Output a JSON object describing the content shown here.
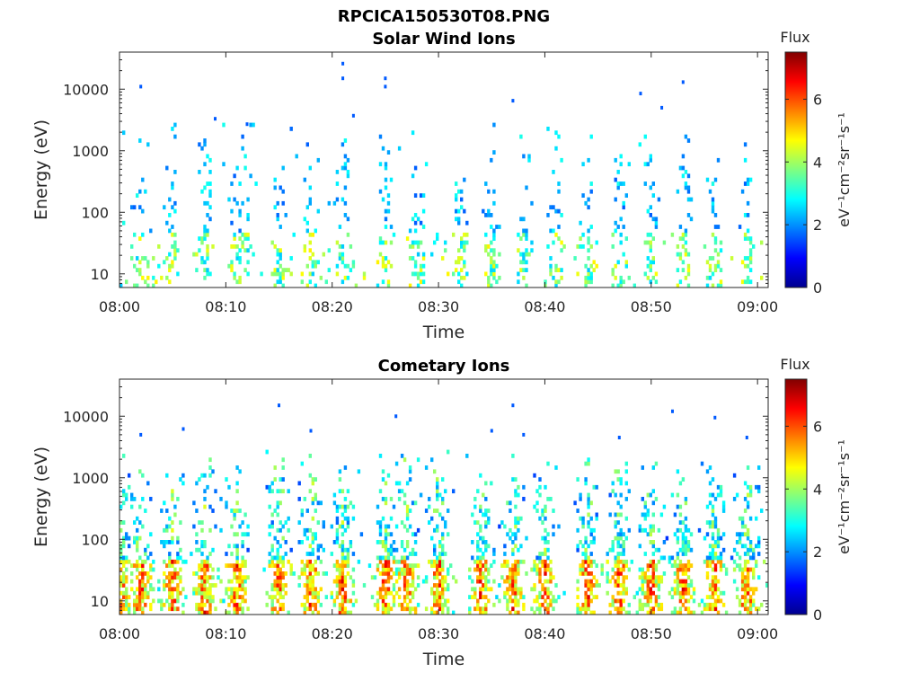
{
  "figure_title": "RPCICA150530T08.PNG",
  "colors": {
    "colormap": [
      "#00008f",
      "#0000ff",
      "#0080ff",
      "#00ffff",
      "#80ff80",
      "#ffff00",
      "#ff8000",
      "#ff0000",
      "#800000"
    ]
  },
  "chart_data": [
    {
      "type": "heatmap",
      "title": "Solar Wind Ions",
      "xlabel": "Time",
      "ylabel": "Energy (eV)",
      "y_scale": "log",
      "xlim": [
        "08:00",
        "09:01"
      ],
      "ylim": [
        6,
        40000
      ],
      "x_ticks": [
        "08:00",
        "08:10",
        "08:20",
        "08:30",
        "08:40",
        "08:50",
        "09:00"
      ],
      "y_ticks": [
        "10",
        "100",
        "1000",
        "10000"
      ],
      "colorbar": {
        "title": "Flux",
        "label": "eV⁻¹cm⁻²sr⁻¹s⁻¹",
        "range": [
          0,
          7.5
        ],
        "ticks": [
          "0",
          "2",
          "4",
          "6"
        ]
      },
      "intensity": "sparse",
      "burst_times": [
        "08:02",
        "08:05",
        "08:08",
        "08:11",
        "08:12",
        "08:15",
        "08:18",
        "08:21",
        "08:25",
        "08:28",
        "08:32",
        "08:35",
        "08:38",
        "08:41",
        "08:44",
        "08:47",
        "08:50",
        "08:53",
        "08:56",
        "08:59"
      ],
      "sparse_points": [
        {
          "t": "08:02",
          "e": 11000
        },
        {
          "t": "08:21",
          "e": 26000
        },
        {
          "t": "08:21",
          "e": 15000
        },
        {
          "t": "08:25",
          "e": 15000
        },
        {
          "t": "08:25",
          "e": 11000
        },
        {
          "t": "08:37",
          "e": 6500
        },
        {
          "t": "08:49",
          "e": 8500
        },
        {
          "t": "08:51",
          "e": 5000
        },
        {
          "t": "08:53",
          "e": 13000
        },
        {
          "t": "08:09",
          "e": 3300
        },
        {
          "t": "08:12",
          "e": 2700
        },
        {
          "t": "08:22",
          "e": 3700
        }
      ]
    },
    {
      "type": "heatmap",
      "title": "Cometary Ions",
      "xlabel": "Time",
      "ylabel": "Energy (eV)",
      "y_scale": "log",
      "xlim": [
        "08:00",
        "09:01"
      ],
      "ylim": [
        6,
        40000
      ],
      "x_ticks": [
        "08:00",
        "08:10",
        "08:20",
        "08:30",
        "08:40",
        "08:50",
        "09:00"
      ],
      "y_ticks": [
        "10",
        "100",
        "1000",
        "10000"
      ],
      "colorbar": {
        "title": "Flux",
        "label": "eV⁻¹cm⁻²sr⁻¹s⁻¹",
        "range": [
          0,
          7.5
        ],
        "ticks": [
          "0",
          "2",
          "4",
          "6"
        ]
      },
      "intensity": "dense",
      "burst_times": [
        "08:00",
        "08:02",
        "08:05",
        "08:08",
        "08:11",
        "08:15",
        "08:18",
        "08:21",
        "08:25",
        "08:27",
        "08:30",
        "08:34",
        "08:37",
        "08:40",
        "08:44",
        "08:47",
        "08:50",
        "08:53",
        "08:56",
        "08:59"
      ],
      "sparse_points": [
        {
          "t": "08:15",
          "e": 15000
        },
        {
          "t": "08:26",
          "e": 10000
        },
        {
          "t": "08:37",
          "e": 15000
        },
        {
          "t": "08:06",
          "e": 6200
        },
        {
          "t": "08:02",
          "e": 5000
        },
        {
          "t": "08:38",
          "e": 5000
        },
        {
          "t": "08:52",
          "e": 12000
        },
        {
          "t": "08:56",
          "e": 9500
        },
        {
          "t": "08:35",
          "e": 5800
        },
        {
          "t": "08:18",
          "e": 5800
        },
        {
          "t": "08:47",
          "e": 4500
        },
        {
          "t": "08:59",
          "e": 4500
        }
      ]
    }
  ]
}
